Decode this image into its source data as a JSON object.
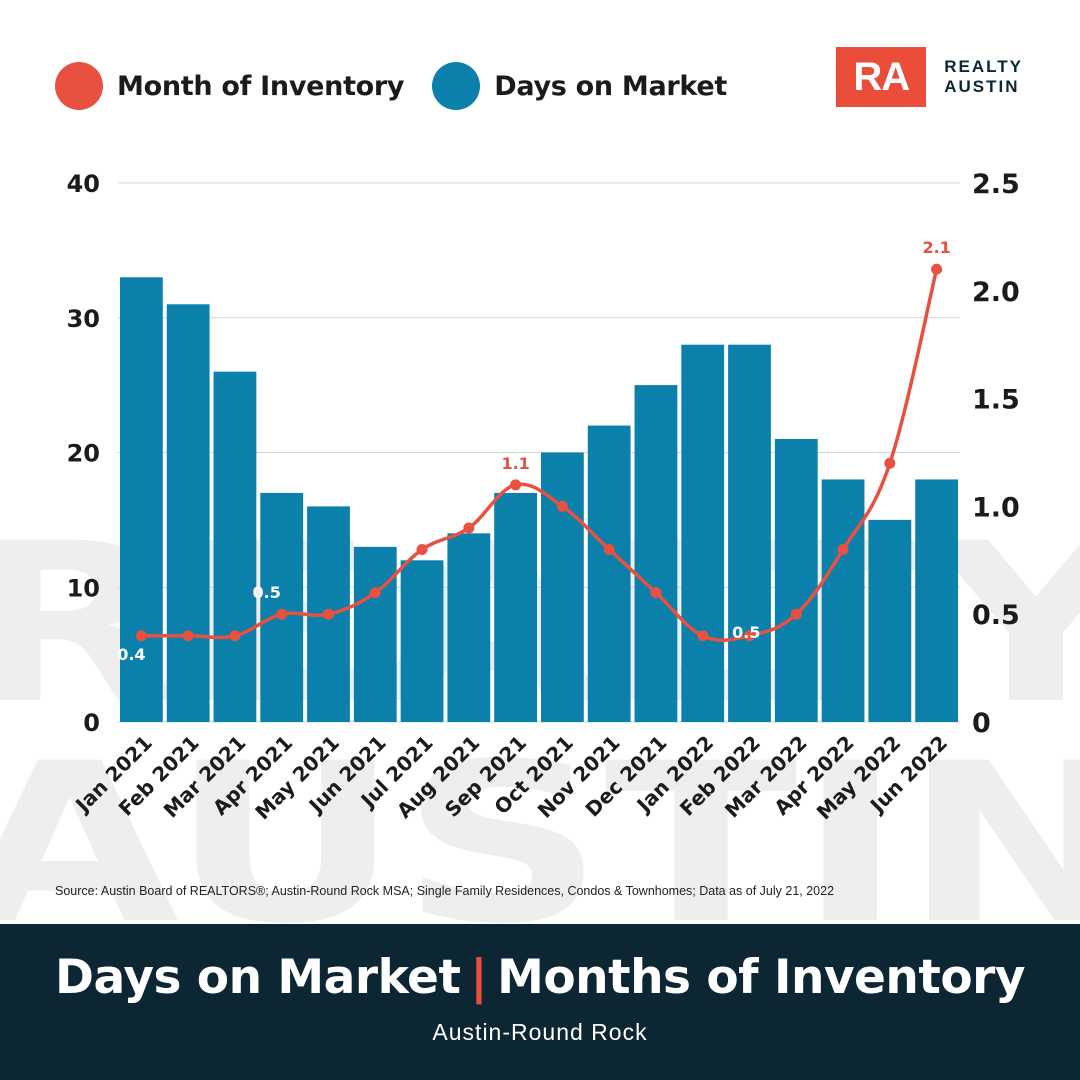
{
  "legend": {
    "inventory_label": "Month of Inventory",
    "dom_label": "Days on Market",
    "inventory_color": "#e8503f",
    "dom_color": "#0a80ab"
  },
  "logo": {
    "mark": "RA",
    "line1": "REALTY",
    "line2": "AUSTIN",
    "watermark": "REALTY AUSTIN"
  },
  "source": "Source: Austin Board of REALTORS®; Austin-Round Rock MSA; Single Family Residences, Condos & Townhomes; Data as of July 21, 2022",
  "footer": {
    "title_left": "Days on Market",
    "separator": "|",
    "title_right": "Months of Inventory",
    "subtitle": "Austin-Round Rock"
  },
  "chart_data": {
    "type": "bar",
    "categories": [
      "Jan 2021",
      "Feb 2021",
      "Mar 2021",
      "Apr 2021",
      "May 2021",
      "Jun 2021",
      "Jul 2021",
      "Aug 2021",
      "Sep 2021",
      "Oct 2021",
      "Nov 2021",
      "Dec 2021",
      "Jan 2022",
      "Feb 2022",
      "Mar 2022",
      "Apr 2022",
      "May 2022",
      "Jun 2022"
    ],
    "series": [
      {
        "name": "Days on Market",
        "type": "bar",
        "axis": "left",
        "values": [
          33,
          31,
          26,
          17,
          16,
          13,
          12,
          14,
          17,
          20,
          22,
          25,
          28,
          28,
          21,
          18,
          15,
          18
        ]
      },
      {
        "name": "Month of Inventory",
        "type": "line",
        "axis": "right",
        "values": [
          0.4,
          0.4,
          0.4,
          0.5,
          0.5,
          0.6,
          0.8,
          0.9,
          1.1,
          1.0,
          0.8,
          0.6,
          0.4,
          0.4,
          0.5,
          0.8,
          1.2,
          2.1
        ]
      }
    ],
    "y_left": {
      "min": 0,
      "max": 40,
      "ticks": [
        "0",
        "10",
        "20",
        "30",
        "40"
      ]
    },
    "y_right": {
      "min": 0,
      "max": 2.5,
      "ticks": [
        "0",
        "0.5",
        "1.0",
        "1.5",
        "2.0",
        "2.5"
      ]
    },
    "grid": true,
    "legend_position": "top-left",
    "point_labels": [
      {
        "index": 0,
        "text": "0.4",
        "color": "#ffffff"
      },
      {
        "index": 3,
        "text": "0.5",
        "color": "#ffffff"
      },
      {
        "index": 8,
        "text": "1.1",
        "color": "#e8503f"
      },
      {
        "index": 14,
        "text": "0.5",
        "color": "#ffffff"
      },
      {
        "index": 17,
        "text": "2.1",
        "color": "#e8503f"
      }
    ]
  }
}
